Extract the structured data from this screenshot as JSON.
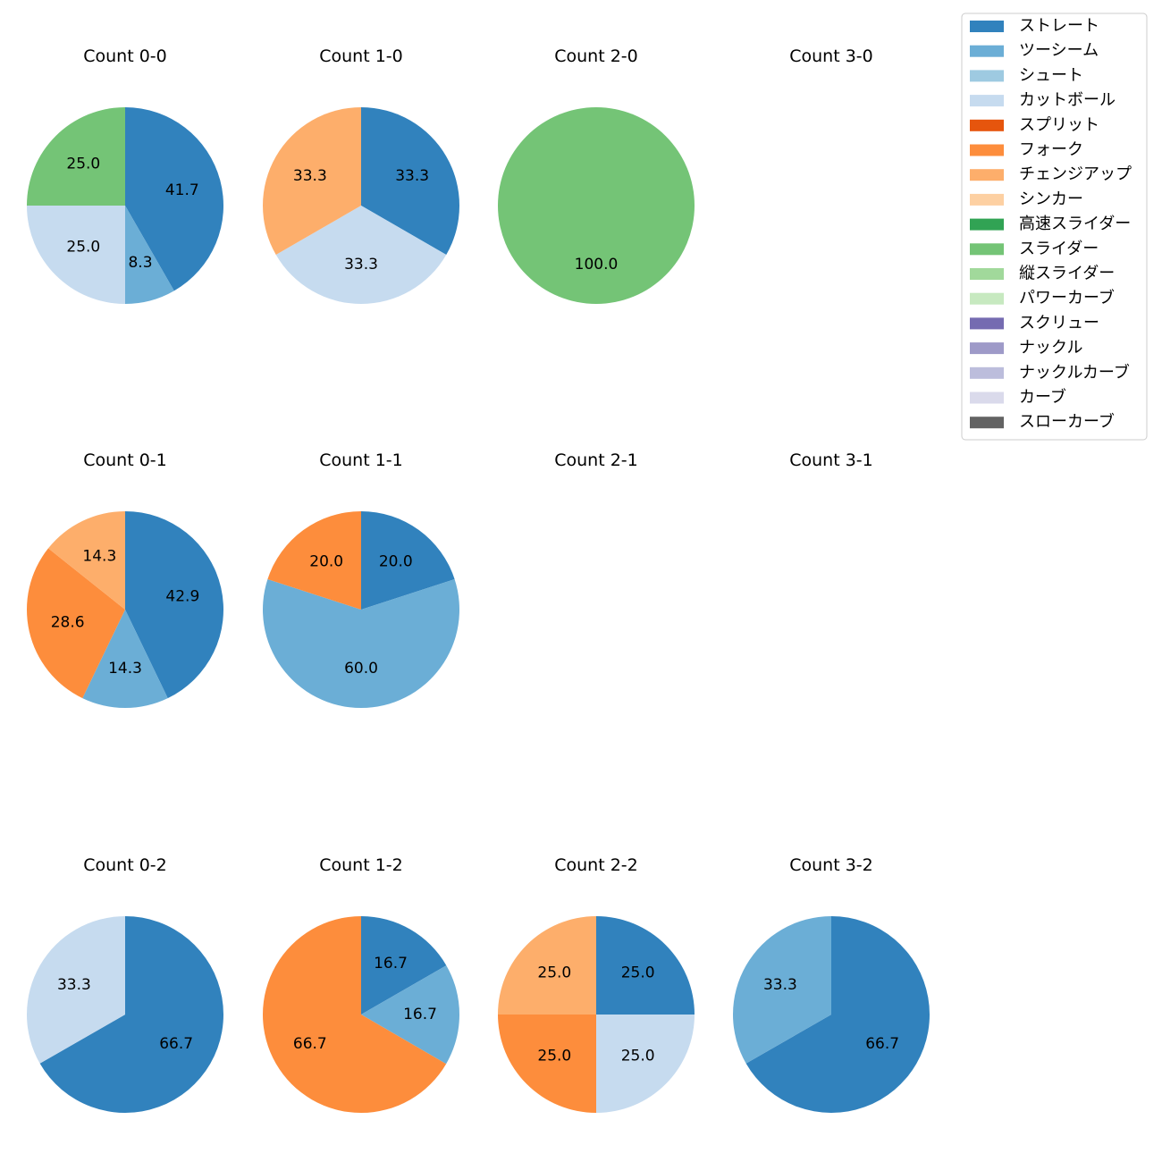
{
  "chart_data": {
    "type": "pie",
    "pitch_types": [
      {
        "name": "ストレート",
        "color": "#3182bd"
      },
      {
        "name": "ツーシーム",
        "color": "#6baed6"
      },
      {
        "name": "シュート",
        "color": "#9ecae1"
      },
      {
        "name": "カットボール",
        "color": "#c6dbef"
      },
      {
        "name": "スプリット",
        "color": "#e6550d"
      },
      {
        "name": "フォーク",
        "color": "#fd8d3c"
      },
      {
        "name": "チェンジアップ",
        "color": "#fdae6b"
      },
      {
        "name": "シンカー",
        "color": "#fdd0a2"
      },
      {
        "name": "高速スライダー",
        "color": "#31a354"
      },
      {
        "name": "スライダー",
        "color": "#74c476"
      },
      {
        "name": "縦スライダー",
        "color": "#a1d99b"
      },
      {
        "name": "パワーカーブ",
        "color": "#c7e9c0"
      },
      {
        "name": "スクリュー",
        "color": "#756bb1"
      },
      {
        "name": "ナックル",
        "color": "#9e9ac8"
      },
      {
        "name": "ナックルカーブ",
        "color": "#bcbddc"
      },
      {
        "name": "カーブ",
        "color": "#dadaeb"
      },
      {
        "name": "スローカーブ",
        "color": "#636363"
      }
    ],
    "panels": [
      {
        "title": "Count 0-0",
        "slices": [
          {
            "pitch": "ストレート",
            "value": 41.7,
            "label": "41.7"
          },
          {
            "pitch": "ツーシーム",
            "value": 8.3,
            "label": "8.3"
          },
          {
            "pitch": "カットボール",
            "value": 25.0,
            "label": "25.0"
          },
          {
            "pitch": "スライダー",
            "value": 25.0,
            "label": "25.0"
          }
        ]
      },
      {
        "title": "Count 1-0",
        "slices": [
          {
            "pitch": "ストレート",
            "value": 33.3,
            "label": "33.3"
          },
          {
            "pitch": "カットボール",
            "value": 33.3,
            "label": "33.3"
          },
          {
            "pitch": "チェンジアップ",
            "value": 33.3,
            "label": "33.3"
          }
        ]
      },
      {
        "title": "Count 2-0",
        "slices": [
          {
            "pitch": "スライダー",
            "value": 100.0,
            "label": "100.0"
          }
        ]
      },
      {
        "title": "Count 3-0",
        "slices": []
      },
      {
        "title": "Count 0-1",
        "slices": [
          {
            "pitch": "ストレート",
            "value": 42.9,
            "label": "42.9"
          },
          {
            "pitch": "ツーシーム",
            "value": 14.3,
            "label": "14.3"
          },
          {
            "pitch": "フォーク",
            "value": 28.6,
            "label": "28.6"
          },
          {
            "pitch": "チェンジアップ",
            "value": 14.3,
            "label": "14.3"
          }
        ]
      },
      {
        "title": "Count 1-1",
        "slices": [
          {
            "pitch": "ストレート",
            "value": 20.0,
            "label": "20.0"
          },
          {
            "pitch": "ツーシーム",
            "value": 60.0,
            "label": "60.0"
          },
          {
            "pitch": "フォーク",
            "value": 20.0,
            "label": "20.0"
          }
        ]
      },
      {
        "title": "Count 2-1",
        "slices": []
      },
      {
        "title": "Count 3-1",
        "slices": []
      },
      {
        "title": "Count 0-2",
        "slices": [
          {
            "pitch": "ストレート",
            "value": 66.7,
            "label": "66.7"
          },
          {
            "pitch": "カットボール",
            "value": 33.3,
            "label": "33.3"
          }
        ]
      },
      {
        "title": "Count 1-2",
        "slices": [
          {
            "pitch": "ストレート",
            "value": 16.7,
            "label": "16.7"
          },
          {
            "pitch": "ツーシーム",
            "value": 16.7,
            "label": "16.7"
          },
          {
            "pitch": "フォーク",
            "value": 66.7,
            "label": "66.7"
          }
        ]
      },
      {
        "title": "Count 2-2",
        "slices": [
          {
            "pitch": "ストレート",
            "value": 25.0,
            "label": "25.0"
          },
          {
            "pitch": "カットボール",
            "value": 25.0,
            "label": "25.0"
          },
          {
            "pitch": "フォーク",
            "value": 25.0,
            "label": "25.0"
          },
          {
            "pitch": "チェンジアップ",
            "value": 25.0,
            "label": "25.0"
          }
        ]
      },
      {
        "title": "Count 3-2",
        "slices": [
          {
            "pitch": "ストレート",
            "value": 66.7,
            "label": "66.7"
          },
          {
            "pitch": "ツーシーム",
            "value": 33.3,
            "label": "33.3"
          }
        ]
      }
    ],
    "legend_position": "top-right"
  }
}
